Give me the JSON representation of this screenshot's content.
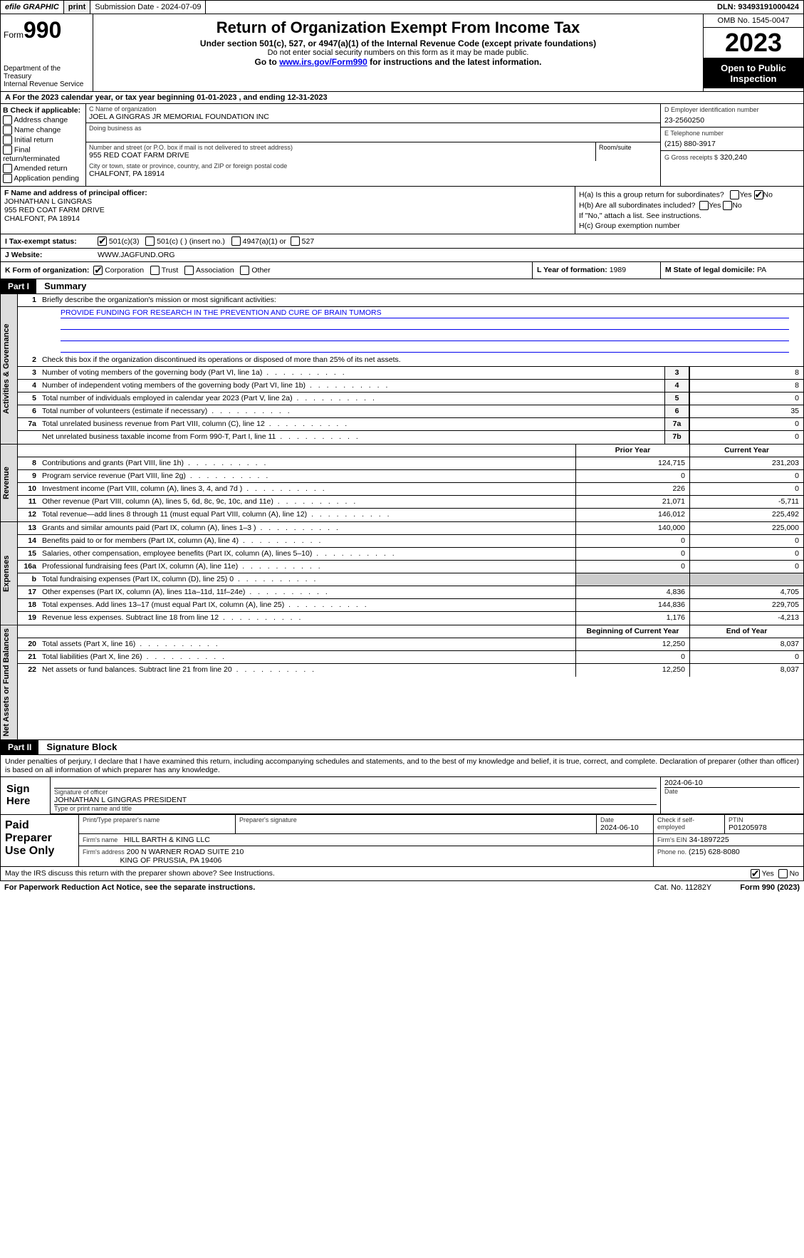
{
  "topbar": {
    "efile": "efile GRAPHIC",
    "print": "print",
    "submission": "Submission Date - 2024-07-09",
    "dln": "DLN: 93493191000424"
  },
  "header": {
    "form_label": "Form",
    "form_num": "990",
    "dept": "Department of the Treasury\nInternal Revenue Service",
    "title": "Return of Organization Exempt From Income Tax",
    "sub1": "Under section 501(c), 527, or 4947(a)(1) of the Internal Revenue Code (except private foundations)",
    "sub2": "Do not enter social security numbers on this form as it may be made public.",
    "sub3_pre": "Go to ",
    "sub3_link": "www.irs.gov/Form990",
    "sub3_post": " for instructions and the latest information.",
    "omb": "OMB No. 1545-0047",
    "year": "2023",
    "open": "Open to Public Inspection"
  },
  "row_a": "A   For the 2023 calendar year, or tax year beginning 01-01-2023   , and ending 12-31-2023",
  "sec_b": {
    "label": "B Check if applicable:",
    "opts": [
      "Address change",
      "Name change",
      "Initial return",
      "Final return/terminated",
      "Amended return",
      "Application pending"
    ],
    "c_label": "C Name of organization",
    "c_name": "JOEL A GINGRAS JR MEMORIAL FOUNDATION INC",
    "dba_label": "Doing business as",
    "addr_label": "Number and street (or P.O. box if mail is not delivered to street address)",
    "addr": "955 RED COAT FARM DRIVE",
    "room_label": "Room/suite",
    "city_label": "City or town, state or province, country, and ZIP or foreign postal code",
    "city": "CHALFONT, PA  18914",
    "d_label": "D Employer identification number",
    "d_val": "23-2560250",
    "e_label": "E Telephone number",
    "e_val": "(215) 880-3917",
    "g_label": "G Gross receipts $",
    "g_val": "320,240"
  },
  "sec_fg": {
    "f_label": "F  Name and address of principal officer:",
    "f_name": "JOHNATHAN L GINGRAS",
    "f_addr1": "955 RED COAT FARM DRIVE",
    "f_addr2": "CHALFONT, PA  18914",
    "ha_label": "H(a)  Is this a group return for subordinates?",
    "hb_label": "H(b)  Are all subordinates included?",
    "hb_note": "If \"No,\" attach a list. See instructions.",
    "hc_label": "H(c)  Group exemption number",
    "yes": "Yes",
    "no": "No"
  },
  "row_i": {
    "label": "I   Tax-exempt status:",
    "o1": "501(c)(3)",
    "o2": "501(c) (  ) (insert no.)",
    "o3": "4947(a)(1) or",
    "o4": "527"
  },
  "row_j": {
    "label": "J   Website:",
    "val": "WWW.JAGFUND.ORG"
  },
  "row_k": {
    "label": "K Form of organization:",
    "o1": "Corporation",
    "o2": "Trust",
    "o3": "Association",
    "o4": "Other",
    "l_label": "L Year of formation:",
    "l_val": "1989",
    "m_label": "M State of legal domicile:",
    "m_val": "PA"
  },
  "part1": {
    "hdr": "Part I",
    "title": "Summary",
    "q1": "Briefly describe the organization's mission or most significant activities:",
    "mission": "PROVIDE FUNDING FOR RESEARCH IN THE PREVENTION AND CURE OF BRAIN TUMORS",
    "q2": "Check this box      if the organization discontinued its operations or disposed of more than 25% of its net assets.",
    "side_ag": "Activities & Governance",
    "side_rev": "Revenue",
    "side_exp": "Expenses",
    "side_na": "Net Assets or Fund Balances",
    "rows_gov": [
      {
        "n": "3",
        "d": "Number of voting members of the governing body (Part VI, line 1a)",
        "bn": "3",
        "v": "8"
      },
      {
        "n": "4",
        "d": "Number of independent voting members of the governing body (Part VI, line 1b)",
        "bn": "4",
        "v": "8"
      },
      {
        "n": "5",
        "d": "Total number of individuals employed in calendar year 2023 (Part V, line 2a)",
        "bn": "5",
        "v": "0"
      },
      {
        "n": "6",
        "d": "Total number of volunteers (estimate if necessary)",
        "bn": "6",
        "v": "35"
      },
      {
        "n": "7a",
        "d": "Total unrelated business revenue from Part VIII, column (C), line 12",
        "bn": "7a",
        "v": "0"
      },
      {
        "n": "",
        "d": "Net unrelated business taxable income from Form 990-T, Part I, line 11",
        "bn": "7b",
        "v": "0"
      }
    ],
    "col_prior": "Prior Year",
    "col_curr": "Current Year",
    "rows_rev": [
      {
        "n": "8",
        "d": "Contributions and grants (Part VIII, line 1h)",
        "p": "124,715",
        "c": "231,203"
      },
      {
        "n": "9",
        "d": "Program service revenue (Part VIII, line 2g)",
        "p": "0",
        "c": "0"
      },
      {
        "n": "10",
        "d": "Investment income (Part VIII, column (A), lines 3, 4, and 7d )",
        "p": "226",
        "c": "0"
      },
      {
        "n": "11",
        "d": "Other revenue (Part VIII, column (A), lines 5, 6d, 8c, 9c, 10c, and 11e)",
        "p": "21,071",
        "c": "-5,711"
      },
      {
        "n": "12",
        "d": "Total revenue—add lines 8 through 11 (must equal Part VIII, column (A), line 12)",
        "p": "146,012",
        "c": "225,492"
      }
    ],
    "rows_exp": [
      {
        "n": "13",
        "d": "Grants and similar amounts paid (Part IX, column (A), lines 1–3 )",
        "p": "140,000",
        "c": "225,000"
      },
      {
        "n": "14",
        "d": "Benefits paid to or for members (Part IX, column (A), line 4)",
        "p": "0",
        "c": "0"
      },
      {
        "n": "15",
        "d": "Salaries, other compensation, employee benefits (Part IX, column (A), lines 5–10)",
        "p": "0",
        "c": "0"
      },
      {
        "n": "16a",
        "d": "Professional fundraising fees (Part IX, column (A), line 11e)",
        "p": "0",
        "c": "0"
      },
      {
        "n": "b",
        "d": "Total fundraising expenses (Part IX, column (D), line 25) 0",
        "p": "grey",
        "c": "grey"
      },
      {
        "n": "17",
        "d": "Other expenses (Part IX, column (A), lines 11a–11d, 11f–24e)",
        "p": "4,836",
        "c": "4,705"
      },
      {
        "n": "18",
        "d": "Total expenses. Add lines 13–17 (must equal Part IX, column (A), line 25)",
        "p": "144,836",
        "c": "229,705"
      },
      {
        "n": "19",
        "d": "Revenue less expenses. Subtract line 18 from line 12",
        "p": "1,176",
        "c": "-4,213"
      }
    ],
    "col_beg": "Beginning of Current Year",
    "col_end": "End of Year",
    "rows_na": [
      {
        "n": "20",
        "d": "Total assets (Part X, line 16)",
        "p": "12,250",
        "c": "8,037"
      },
      {
        "n": "21",
        "d": "Total liabilities (Part X, line 26)",
        "p": "0",
        "c": "0"
      },
      {
        "n": "22",
        "d": "Net assets or fund balances. Subtract line 21 from line 20",
        "p": "12,250",
        "c": "8,037"
      }
    ]
  },
  "part2": {
    "hdr": "Part II",
    "title": "Signature Block",
    "decl": "Under penalties of perjury, I declare that I have examined this return, including accompanying schedules and statements, and to the best of my knowledge and belief, it is true, correct, and complete. Declaration of preparer (other than officer) is based on all information of which preparer has any knowledge.",
    "sign_here": "Sign Here",
    "sig_label": "Signature of officer",
    "sig_name": "JOHNATHAN L GINGRAS  PRESIDENT",
    "sig_type": "Type or print name and title",
    "date_label": "Date",
    "date_val": "2024-06-10",
    "paid": "Paid Preparer Use Only",
    "pp_name_label": "Print/Type preparer's name",
    "pp_sig_label": "Preparer's signature",
    "pp_date_label": "Date",
    "pp_date": "2024-06-10",
    "pp_check": "Check       if self-employed",
    "pp_ptin_label": "PTIN",
    "pp_ptin": "P01205978",
    "firm_name_label": "Firm's name",
    "firm_name": "HILL BARTH & KING LLC",
    "firm_ein_label": "Firm's EIN",
    "firm_ein": "34-1897225",
    "firm_addr_label": "Firm's address",
    "firm_addr1": "200 N WARNER ROAD SUITE 210",
    "firm_addr2": "KING OF PRUSSIA, PA  19406",
    "firm_phone_label": "Phone no.",
    "firm_phone": "(215) 628-8080",
    "discuss": "May the IRS discuss this return with the preparer shown above? See Instructions.",
    "pwra": "For Paperwork Reduction Act Notice, see the separate instructions.",
    "cat": "Cat. No. 11282Y",
    "form_foot": "Form 990 (2023)"
  }
}
